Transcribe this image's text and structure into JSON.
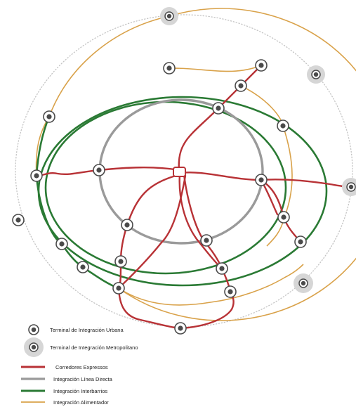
{
  "colors": {
    "corredores": "#b83236",
    "linea_directa": "#9a9a9a",
    "interbarrios": "#2a7a34",
    "alimentador": "#d9a24a",
    "orbit_dotted": "#c4c4c4",
    "terminal_dark": "#4a4a4a",
    "metro_halo": "#d6d6d6"
  },
  "legend": {
    "terminal_urbana": "Terminal de Integración Urbana",
    "terminal_metropolitano": "Terminal de Integración Metropolitano",
    "corredores": "Corredores Expressos",
    "linea_directa": "Integración Línea Directa",
    "interbarrios": "Integración Interbarrios",
    "alimentador": "Integración Alimentador"
  }
}
